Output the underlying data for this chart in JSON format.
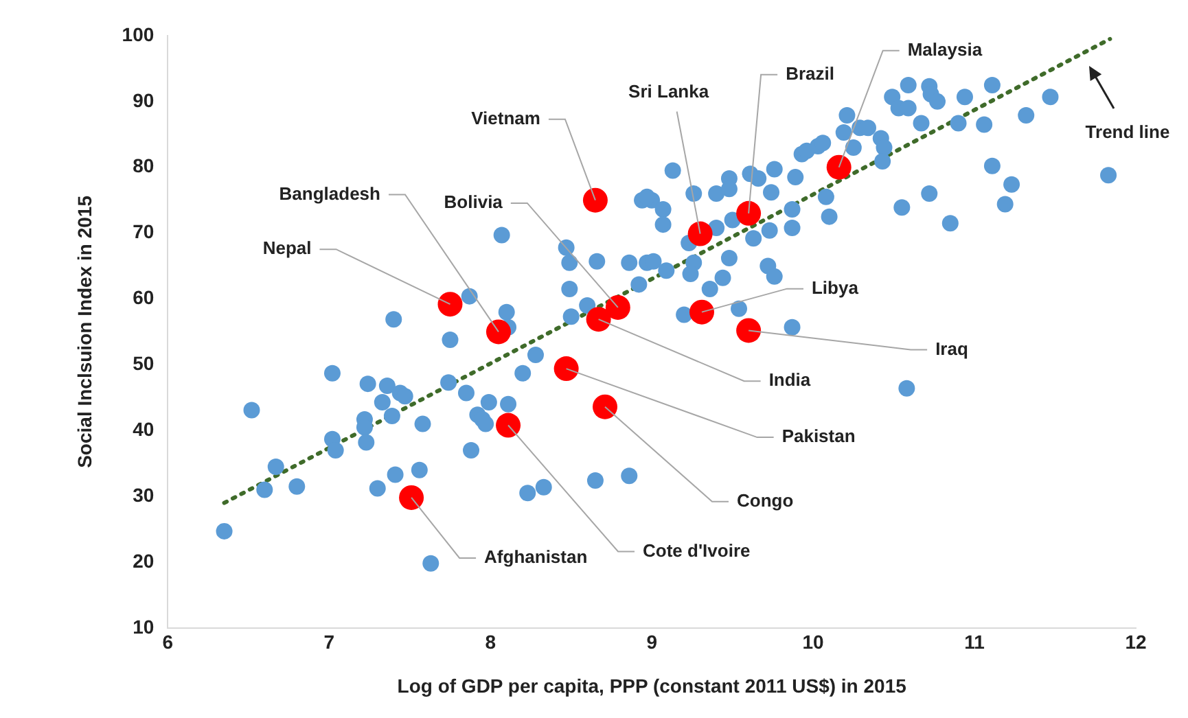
{
  "chart_data": {
    "type": "scatter",
    "xlabel": "Log of GDP per capita, PPP (constant 2011 US$) in 2015",
    "ylabel": "Social Inclsuion Index in 2015",
    "xlim": [
      6,
      12
    ],
    "xticks": [
      6,
      7,
      8,
      9,
      10,
      11,
      12
    ],
    "ylim": [
      10,
      100
    ],
    "yticks": [
      10,
      20,
      30,
      40,
      50,
      60,
      70,
      80,
      90,
      100
    ],
    "grid": false,
    "legend": false,
    "marker": "circle",
    "series": [
      {
        "color": "#5b9bd5",
        "x": [
          6.35,
          6.52,
          6.6,
          6.67,
          6.8,
          7.02,
          7.02,
          7.04,
          7.24,
          7.22,
          7.22,
          7.23,
          7.3,
          7.33,
          7.36,
          7.39,
          7.4,
          7.41,
          7.44,
          7.47,
          7.56,
          7.58,
          7.63,
          7.74,
          7.75,
          7.87,
          7.85,
          7.88,
          7.92,
          7.95,
          7.99,
          7.97,
          8.07,
          8.1,
          8.11,
          8.11,
          8.2,
          8.23,
          8.28,
          8.33,
          8.47,
          8.49,
          8.49,
          8.5,
          8.6,
          8.65,
          8.86,
          8.66,
          8.86,
          8.97,
          8.92,
          8.94,
          9.0,
          9.13,
          8.97,
          9.07,
          9.07,
          9.01,
          9.26,
          9.4,
          9.48,
          9.48,
          9.61,
          9.66,
          9.76,
          9.74,
          9.89,
          9.93,
          9.96,
          10.03,
          10.06,
          10.21,
          10.19,
          10.25,
          10.29,
          10.34,
          10.42,
          10.44,
          10.43,
          10.49,
          10.53,
          10.59,
          10.59,
          10.67,
          10.72,
          10.73,
          10.77,
          10.94,
          10.9,
          11.06,
          11.11,
          11.32,
          11.47,
          11.83,
          11.11,
          11.23,
          11.19,
          10.72,
          10.55,
          10.85,
          10.1,
          10.08,
          9.87,
          9.87,
          9.73,
          9.63,
          9.5,
          9.4,
          9.23,
          9.26,
          9.48,
          9.44,
          9.36,
          9.72,
          9.76,
          9.2,
          9.54,
          9.87,
          9.09,
          9.24,
          10.58
        ],
        "values": [
          24.7,
          43.1,
          31,
          34.5,
          31.5,
          48.7,
          38.7,
          37,
          47.1,
          41.7,
          40.5,
          38.2,
          31.2,
          44.3,
          46.8,
          42.2,
          56.9,
          33.3,
          45.7,
          45.2,
          34,
          41,
          19.8,
          47.3,
          53.8,
          60.4,
          45.7,
          37,
          42.4,
          41.7,
          44.3,
          41,
          69.7,
          58,
          55.7,
          44,
          48.7,
          30.5,
          51.5,
          31.4,
          67.8,
          65.5,
          61.5,
          57.3,
          59,
          32.4,
          33.1,
          65.7,
          65.5,
          65.5,
          62.2,
          75,
          75,
          79.5,
          75.5,
          73.6,
          71.3,
          65.7,
          76,
          76,
          78.3,
          76.7,
          79,
          78.3,
          79.7,
          76.2,
          78.5,
          82,
          82.5,
          83.2,
          83.7,
          87.9,
          85.3,
          83,
          86,
          86,
          84.4,
          83,
          80.9,
          90.7,
          89,
          92.5,
          89,
          86.7,
          92.3,
          91.1,
          90,
          90.7,
          86.7,
          86.5,
          92.5,
          87.9,
          90.7,
          78.8,
          80.2,
          77.4,
          74.4,
          76,
          73.9,
          71.5,
          72.5,
          75.5,
          70.8,
          73.6,
          70.4,
          69.2,
          72,
          70.8,
          68.5,
          65.5,
          66.2,
          63.2,
          61.5,
          65,
          63.4,
          57.6,
          58.5,
          55.7,
          64.3,
          63.8,
          46.4
        ]
      },
      {
        "color": "#ff0000",
        "x": [
          8.65,
          7.75,
          8.05,
          8.79,
          8.67,
          8.47,
          8.71,
          8.11,
          7.51,
          9.3,
          9.6,
          10.16,
          9.31,
          9.6
        ],
        "values": [
          75,
          59.2,
          55,
          58.7,
          56.9,
          49.4,
          43.6,
          40.8,
          29.8,
          69.9,
          73,
          80,
          58,
          55.2
        ]
      },
      {
        "type": "line",
        "color": "#3f6b2a",
        "line_style": "dotted",
        "marker": "none",
        "x": [
          6.35,
          11.84
        ],
        "values": [
          29,
          99.5
        ]
      }
    ],
    "annotations": [
      {
        "text": "Vietnam",
        "x": 8.65,
        "y": 75
      },
      {
        "text": "Nepal",
        "x": 7.75,
        "y": 59.2
      },
      {
        "text": "Bangladesh",
        "x": 8.05,
        "y": 55
      },
      {
        "text": "Bolivia",
        "x": 8.79,
        "y": 58.7
      },
      {
        "text": "India",
        "x": 8.67,
        "y": 56.9
      },
      {
        "text": "Pakistan",
        "x": 8.47,
        "y": 49.4
      },
      {
        "text": "Congo",
        "x": 8.71,
        "y": 43.6
      },
      {
        "text": "Cote d'Ivoire",
        "x": 8.11,
        "y": 40.8
      },
      {
        "text": "Afghanistan",
        "x": 7.51,
        "y": 29.8
      },
      {
        "text": "Sri Lanka",
        "x": 9.3,
        "y": 69.9
      },
      {
        "text": "Brazil",
        "x": 9.6,
        "y": 73
      },
      {
        "text": "Malaysia",
        "x": 10.16,
        "y": 80
      },
      {
        "text": "Libya",
        "x": 9.31,
        "y": 58
      },
      {
        "text": "Iraq",
        "x": 9.6,
        "y": 55.2
      },
      "Trend line"
    ]
  }
}
